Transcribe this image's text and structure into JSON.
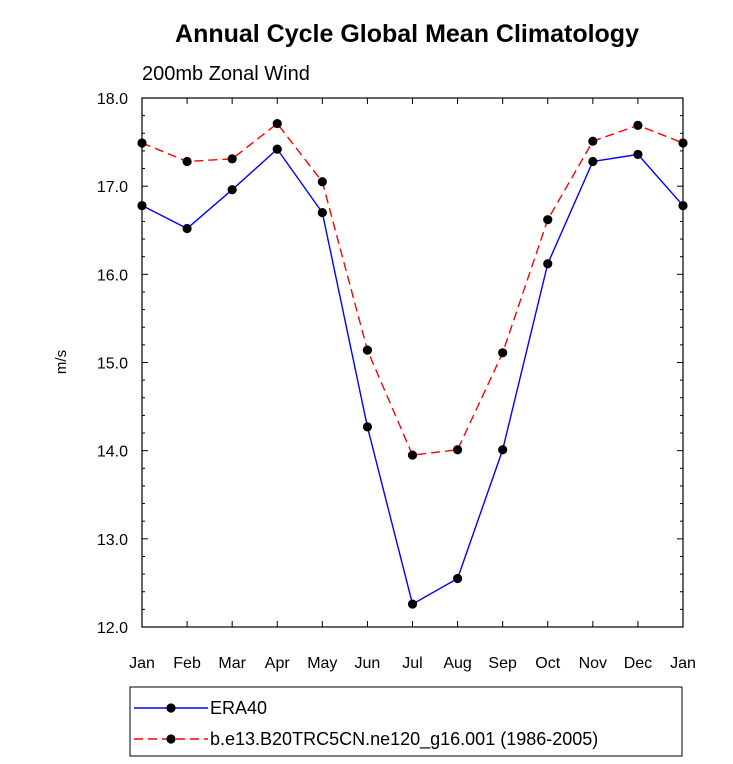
{
  "chart_data": {
    "type": "line",
    "title": "Annual Cycle Global Mean Climatology",
    "subtitle": "200mb Zonal Wind",
    "xlabel": "",
    "ylabel": "m/s",
    "categories": [
      "Jan",
      "Feb",
      "Mar",
      "Apr",
      "May",
      "Jun",
      "Jul",
      "Aug",
      "Sep",
      "Oct",
      "Nov",
      "Dec",
      "Jan"
    ],
    "ylim": [
      12.0,
      18.0
    ],
    "yticks": [
      "12.0",
      "13.0",
      "14.0",
      "15.0",
      "16.0",
      "17.0",
      "18.0"
    ],
    "grid": false,
    "legend_position": "bottom",
    "series": [
      {
        "name": "ERA40",
        "color": "#0000ff",
        "dash": "solid",
        "values": [
          16.78,
          16.52,
          16.96,
          17.42,
          16.7,
          14.27,
          12.26,
          12.55,
          14.01,
          16.12,
          17.28,
          17.36,
          16.78
        ]
      },
      {
        "name": "b.e13.B20TRC5CN.ne120_g16.001 (1986-2005)",
        "color": "#ff0000",
        "dash": "dashed",
        "values": [
          17.49,
          17.28,
          17.31,
          17.71,
          17.05,
          15.14,
          13.95,
          14.01,
          15.11,
          16.62,
          17.51,
          17.69,
          17.49
        ]
      }
    ]
  }
}
